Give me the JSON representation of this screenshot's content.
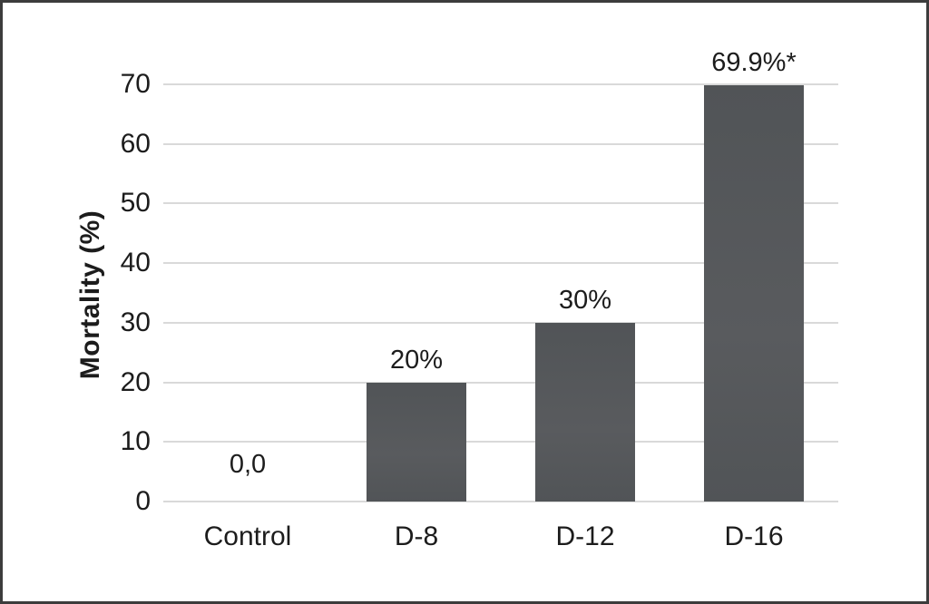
{
  "colors": {
    "background": "#ffffff",
    "frame_border": "#3c3c3c",
    "text": "#1c1c1c",
    "gridline": "#d9d9d9",
    "bar_top": "#515457",
    "bar_bottom": "#595b5e"
  },
  "chart_data": {
    "type": "bar",
    "categories": [
      "Control",
      "D-8",
      "D-12",
      "D-16"
    ],
    "values": [
      0,
      20,
      30,
      69.9
    ],
    "bar_labels": [
      "0,0",
      "20%",
      "30%",
      "69.9%*"
    ],
    "title": "",
    "xlabel": "",
    "ylabel": "Mortality (%)",
    "ylim": [
      0,
      70
    ],
    "yticks": [
      0,
      10,
      20,
      30,
      40,
      50,
      60,
      70
    ],
    "grid": "horizontal-only",
    "legend": "none"
  }
}
